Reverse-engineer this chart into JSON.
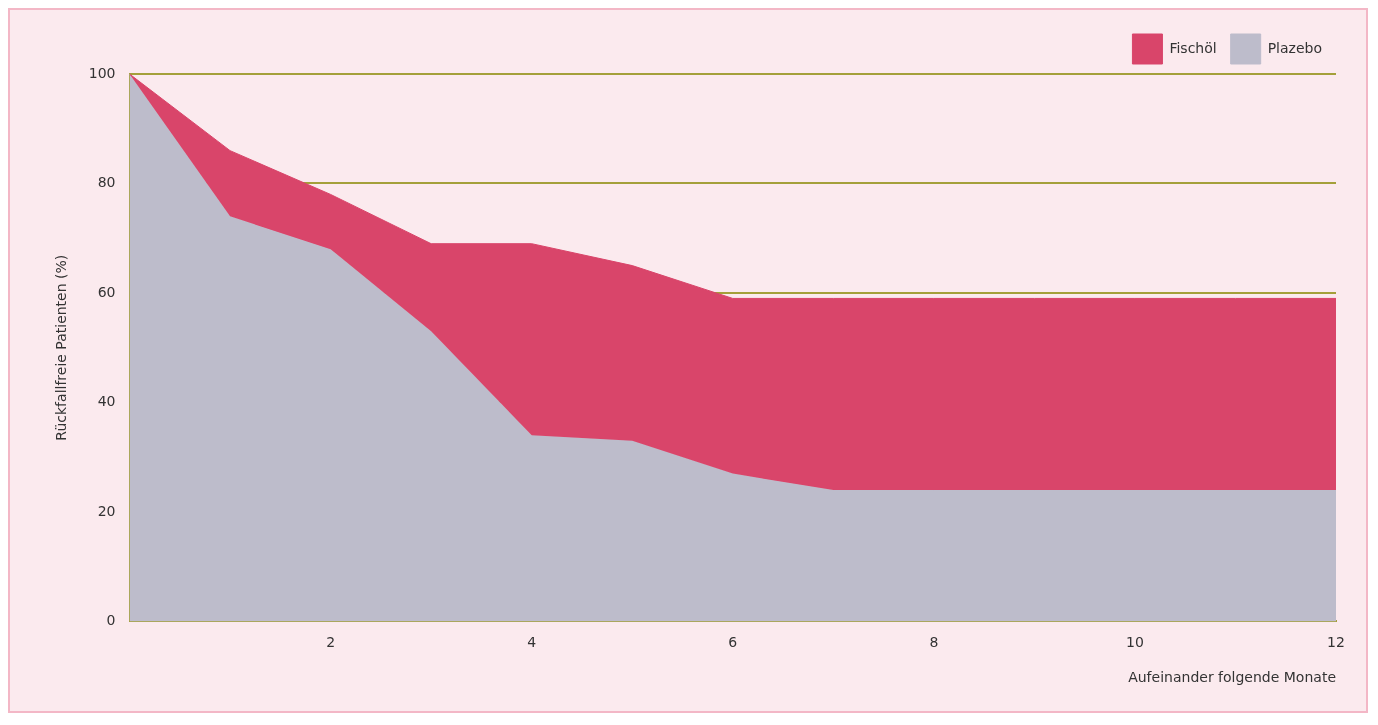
{
  "chart_data": {
    "type": "area",
    "xlabel": "Aufeinander folgende Monate",
    "ylabel": "Rückfallfreie Patienten (%)",
    "x": [
      0,
      1,
      2,
      3,
      4,
      5,
      6,
      7,
      8,
      9,
      10,
      11,
      12
    ],
    "series": [
      {
        "name": "Fischöl",
        "color": "#d9456a",
        "values": [
          100,
          86,
          78,
          69,
          69,
          65,
          59,
          59,
          59,
          59,
          59,
          59,
          59
        ]
      },
      {
        "name": "Plazebo",
        "color": "#bdbccb",
        "values": [
          100,
          74,
          68,
          53,
          34,
          33,
          27,
          24,
          24,
          24,
          24,
          24,
          24
        ]
      }
    ],
    "xlim": [
      0,
      12
    ],
    "xticks": [
      {
        "value": 0,
        "label": null
      },
      2,
      4,
      6,
      8,
      10,
      12
    ],
    "ylim": [
      0,
      100
    ],
    "yticks": [
      0,
      20,
      40,
      60,
      80,
      100
    ],
    "grid": "y",
    "legend": "top right"
  }
}
